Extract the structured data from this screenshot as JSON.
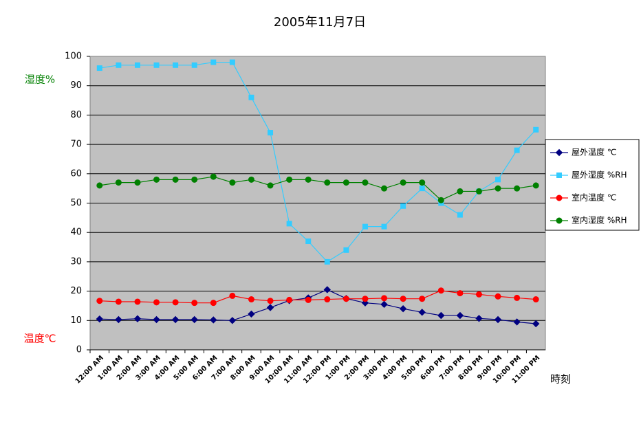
{
  "chart_data": {
    "type": "line",
    "title": "2005年11月7日",
    "y_label_humidity": "湿度%",
    "y_label_temperature": "温度℃",
    "x_label": "時刻",
    "categories": [
      "12:00 AM",
      "1:00 AM",
      "2:00 AM",
      "3:00 AM",
      "4:00 AM",
      "5:00 AM",
      "6:00 AM",
      "7:00 AM",
      "8:00 AM",
      "9:00 AM",
      "10:00 AM",
      "11:00 AM",
      "12:00 PM",
      "1:00 PM",
      "2:00 PM",
      "3:00 PM",
      "4:00 PM",
      "5:00 PM",
      "6:00 PM",
      "7:00 PM",
      "8:00 PM",
      "9:00 PM",
      "10:00 PM",
      "11:00 PM"
    ],
    "series": [
      {
        "name": "屋外温度 ℃",
        "color": "#000080",
        "marker": "diamond",
        "values": [
          10.5,
          10.3,
          10.6,
          10.3,
          10.3,
          10.3,
          10.2,
          10,
          12.2,
          14.4,
          16.8,
          17.7,
          20.5,
          17.5,
          16,
          15.5,
          14,
          12.8,
          11.7,
          11.7,
          10.7,
          10.3,
          9.5,
          8.9
        ]
      },
      {
        "name": "屋外湿度 %RH",
        "color": "#33ccff",
        "marker": "square",
        "values": [
          96,
          97,
          97,
          97,
          97,
          97,
          98,
          98,
          86,
          74,
          43,
          37,
          30,
          34,
          42,
          42,
          49,
          55,
          50,
          46,
          54,
          58,
          68,
          75
        ]
      },
      {
        "name": "室内温度 ℃",
        "color": "#ff0000",
        "marker": "circle",
        "values": [
          16.7,
          16.4,
          16.4,
          16.2,
          16.2,
          16,
          16,
          18.4,
          17.2,
          16.7,
          17,
          17,
          17.2,
          17.4,
          17.4,
          17.6,
          17.4,
          17.4,
          20.2,
          19.3,
          18.9,
          18.2,
          17.7,
          17.2
        ]
      },
      {
        "name": "室内湿度 %RH",
        "color": "#008000",
        "marker": "circle",
        "values": [
          56,
          57,
          57,
          58,
          58,
          58,
          59,
          57,
          58,
          56,
          58,
          58,
          57,
          57,
          57,
          55,
          57,
          57,
          51,
          54,
          54,
          55,
          55,
          56
        ]
      }
    ],
    "ylim": [
      0,
      100
    ],
    "yticks": [
      0,
      10,
      20,
      30,
      40,
      50,
      60,
      70,
      80,
      90,
      100
    ],
    "grid": true,
    "legend": "right"
  }
}
